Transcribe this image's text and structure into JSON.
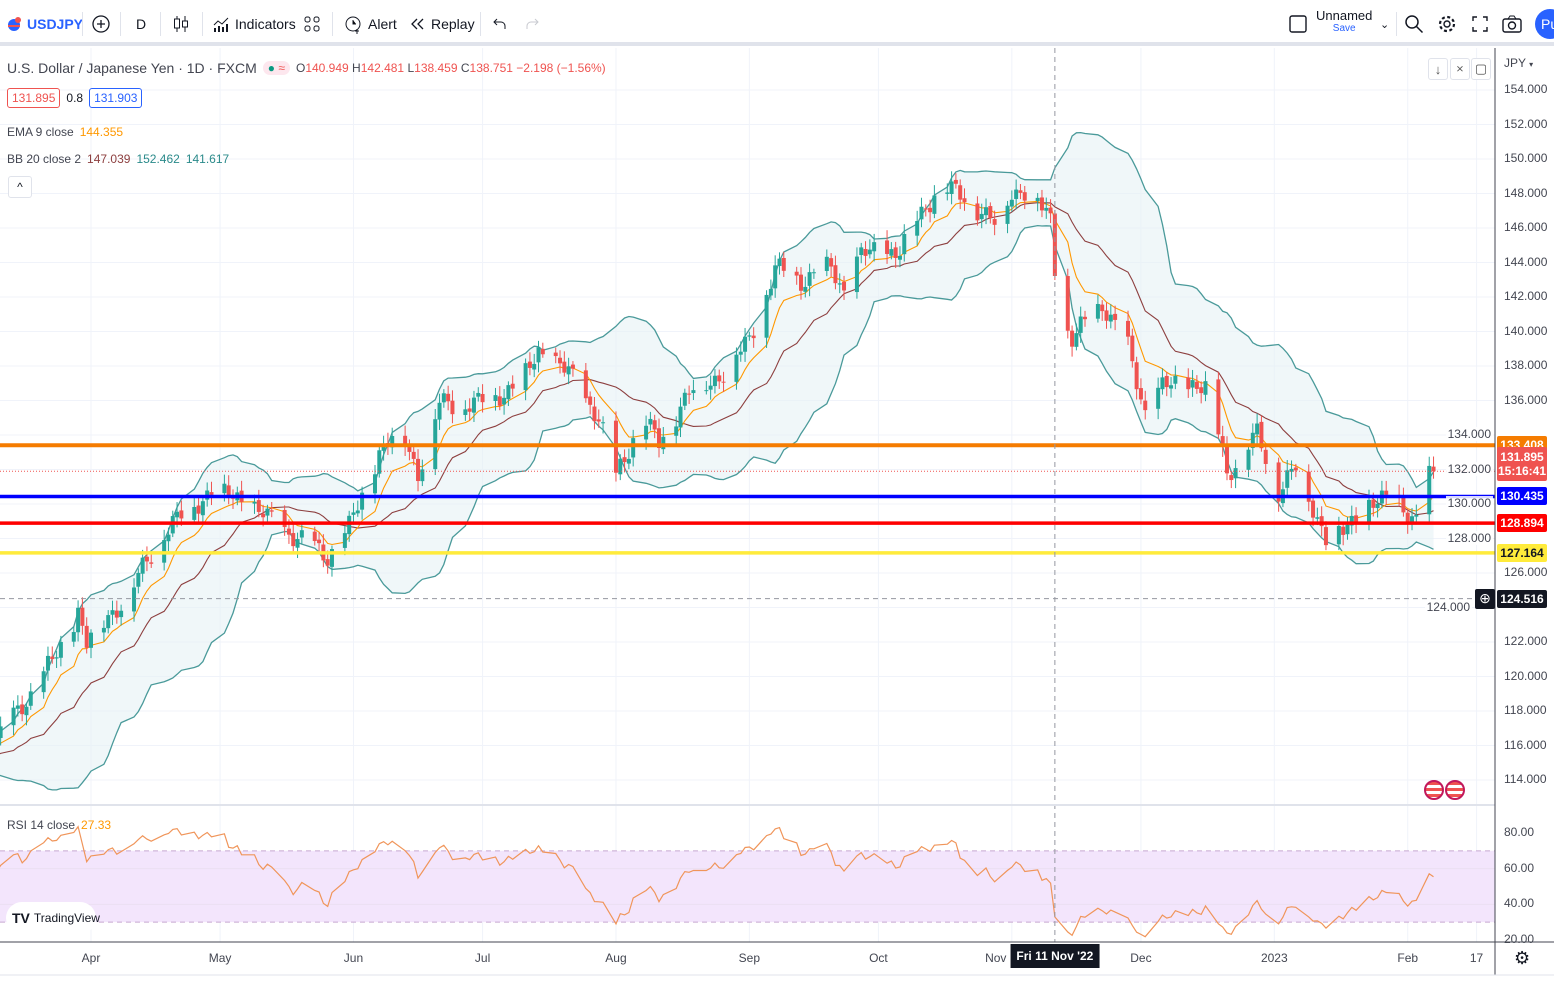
{
  "toolbar": {
    "symbol": "USDJPY",
    "interval": "D",
    "indicators_label": "Indicators",
    "alert_label": "Alert",
    "replay_label": "Replay",
    "layout_name": "Unnamed",
    "save_label": "Save",
    "publish_label": "Pu"
  },
  "legend": {
    "title": "U.S. Dollar / Japanese Yen · 1D · FXCM",
    "ohlc": {
      "o_label": "O",
      "o": "140.949",
      "h_label": "H",
      "h": "142.481",
      "l_label": "L",
      "l": "138.459",
      "c_label": "C",
      "c": "138.751",
      "change": "−2.198 (−1.56%)"
    },
    "bid": "131.895",
    "spread": "0.8",
    "ask": "131.903",
    "ema_label": "EMA 9 close",
    "ema_value": "144.355",
    "bb_label": "BB 20 close 2",
    "bb_basis": "147.039",
    "bb_upper": "152.462",
    "bb_lower": "141.617",
    "rsi_label": "RSI 14 close",
    "rsi_value": "27.33"
  },
  "price_axis": {
    "currency": "JPY",
    "ticks": [
      154,
      152,
      150,
      148,
      146,
      144,
      142,
      140,
      138,
      136,
      134,
      132,
      130,
      128,
      126,
      124,
      122,
      120,
      118,
      116,
      114
    ],
    "rsi_ticks": [
      "80.00",
      "60.00",
      "40.00",
      "20.00"
    ]
  },
  "levels": [
    {
      "name": "orange-level",
      "price": 133.408,
      "label": "133.408",
      "color": "#f57c00"
    },
    {
      "name": "blue-level",
      "price": 130.435,
      "label": "130.435",
      "color": "#0000ff"
    },
    {
      "name": "red-level",
      "price": 128.894,
      "label": "128.894",
      "color": "#ff0000"
    },
    {
      "name": "yellow-level",
      "price": 127.164,
      "label": "127.164",
      "color": "#ffeb3b"
    }
  ],
  "last_price": {
    "price": 131.895,
    "label": "131.895",
    "countdown": "15:16:41",
    "color": "#ef5350"
  },
  "crosshair": {
    "price": 124.516,
    "label": "124.516",
    "date_label": "Fri 11 Nov '22",
    "day": 224
  },
  "time_axis": [
    {
      "label": "Apr",
      "day": 0
    },
    {
      "label": "May",
      "day": 30
    },
    {
      "label": "Jun",
      "day": 61
    },
    {
      "label": "Jul",
      "day": 91
    },
    {
      "label": "Aug",
      "day": 122
    },
    {
      "label": "Sep",
      "day": 153
    },
    {
      "label": "Oct",
      "day": 183
    },
    {
      "label": "Nov",
      "day": 214
    },
    {
      "label": "Dec",
      "day": 244
    },
    {
      "label": "2023",
      "day": 275
    },
    {
      "label": "Feb",
      "day": 306
    },
    {
      "label": "17",
      "day": 322
    }
  ],
  "watermark": "TradingView",
  "colors": {
    "up": "#26a69a",
    "down": "#ef5350",
    "ema": "#ff9800",
    "bb_basis": "#8d3f3f",
    "bb_band": "#4a9a9a",
    "rsi": "#f0955a",
    "accent": "#2962ff"
  },
  "chart_data": {
    "type": "candlestick",
    "title": "U.S. Dollar / Japanese Yen · 1D · FXCM",
    "x_unit": "days since 2022-04-01",
    "ylim": [
      113,
      155
    ],
    "rsi_ylim": [
      20,
      85
    ],
    "close_anchors": [
      [
        -50,
        115.0
      ],
      [
        -30,
        115.4
      ],
      [
        -21,
        116.6
      ],
      [
        -14,
        119.0
      ],
      [
        -5,
        122.4
      ],
      [
        -3,
        123.8
      ],
      [
        -1,
        122.0
      ],
      [
        9,
        124.9
      ],
      [
        17,
        128.4
      ],
      [
        28,
        130.8
      ],
      [
        35,
        130.3
      ],
      [
        42,
        129.0
      ],
      [
        49,
        127.9
      ],
      [
        55,
        127.0
      ],
      [
        60,
        128.6
      ],
      [
        67,
        133.0
      ],
      [
        72,
        134.4
      ],
      [
        76,
        131.8
      ],
      [
        81,
        135.8
      ],
      [
        90,
        135.8
      ],
      [
        100,
        137.0
      ],
      [
        104,
        138.9
      ],
      [
        111,
        137.6
      ],
      [
        118,
        135.0
      ],
      [
        122,
        131.6
      ],
      [
        128,
        135.0
      ],
      [
        132,
        133.5
      ],
      [
        139,
        136.5
      ],
      [
        146,
        137.4
      ],
      [
        153,
        139.5
      ],
      [
        159,
        143.6
      ],
      [
        165,
        143.0
      ],
      [
        172,
        143.7
      ],
      [
        175,
        142.3
      ],
      [
        179,
        144.5
      ],
      [
        188,
        144.7
      ],
      [
        197,
        148.5
      ],
      [
        204,
        147.6
      ],
      [
        210,
        146.3
      ],
      [
        214,
        148.1
      ],
      [
        218,
        148.2
      ],
      [
        223,
        146.5
      ],
      [
        225,
        140.9
      ],
      [
        228,
        139.5
      ],
      [
        235,
        141.7
      ],
      [
        241,
        139.0
      ],
      [
        245,
        135.3
      ],
      [
        249,
        136.8
      ],
      [
        256,
        137.0
      ],
      [
        260,
        136.6
      ],
      [
        264,
        131.8
      ],
      [
        271,
        134.0
      ],
      [
        276,
        130.8
      ],
      [
        280,
        132.1
      ],
      [
        287,
        128.1
      ],
      [
        291,
        128.4
      ],
      [
        297,
        130.0
      ],
      [
        304,
        130.2
      ],
      [
        308,
        128.9
      ],
      [
        311,
        131.6
      ],
      [
        312,
        131.895
      ]
    ]
  }
}
